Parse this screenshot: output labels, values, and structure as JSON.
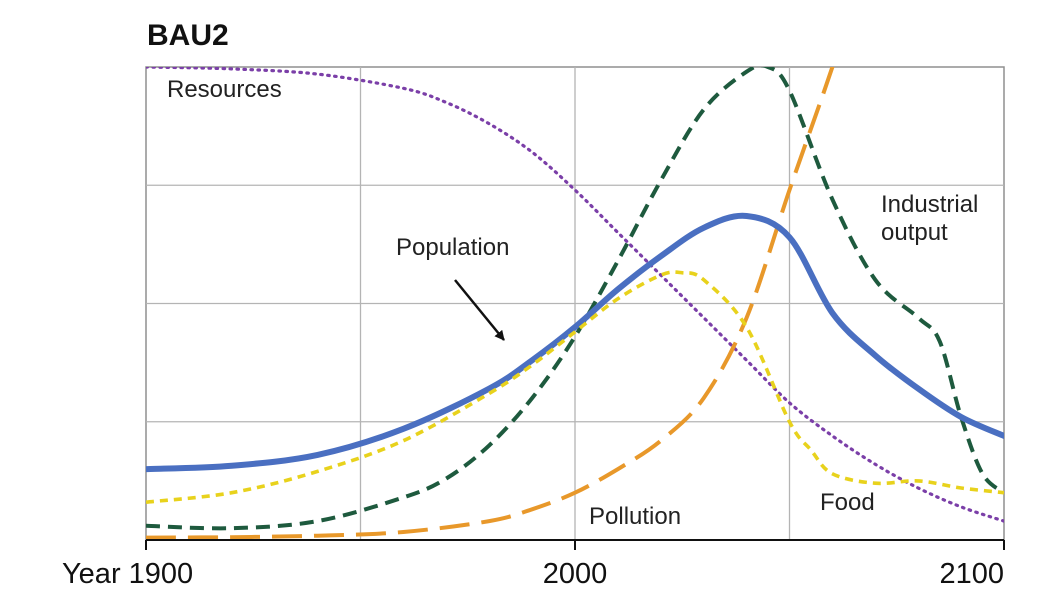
{
  "chart_data": {
    "type": "line",
    "title": "BAU2",
    "xlabel": "",
    "ylabel": "",
    "xlim": [
      1900,
      2100
    ],
    "ylim": [
      0,
      100
    ],
    "x_ticks": [
      "Year 1900",
      "2000",
      "2100"
    ],
    "grid": true,
    "legend": "none (series labelled directly on the plot)",
    "series": [
      {
        "name": "Resources",
        "color": "#7b3fa8",
        "style": "dotted",
        "x": [
          1900,
          1920,
          1940,
          1960,
          1970,
          1980,
          1990,
          2000,
          2010,
          2020,
          2030,
          2040,
          2050,
          2060,
          2070,
          2080,
          2090,
          2100
        ],
        "y": [
          100,
          99.6,
          98.5,
          95.5,
          92.5,
          88,
          82,
          74,
          65,
          56,
          47,
          38,
          29,
          22,
          16,
          11,
          7,
          4
        ]
      },
      {
        "name": "Industrial output",
        "color": "#1e5a3e",
        "style": "dashed",
        "x": [
          1900,
          1920,
          1940,
          1960,
          1970,
          1980,
          1990,
          2000,
          2010,
          2020,
          2030,
          2040,
          2045,
          2050,
          2060,
          2070,
          2080,
          2085,
          2090,
          2095,
          2100
        ],
        "y": [
          3,
          2.5,
          4,
          9,
          13,
          20,
          30,
          43,
          59,
          76,
          91,
          99,
          100,
          95,
          72,
          55,
          47,
          42,
          26,
          14,
          10
        ]
      },
      {
        "name": "Pollution",
        "color": "#e8982a",
        "style": "long-dashed",
        "x": [
          1900,
          1920,
          1940,
          1960,
          1980,
          1990,
          2000,
          2010,
          2020,
          2030,
          2040,
          2050,
          2060,
          2065
        ],
        "y": [
          0.5,
          0.6,
          0.9,
          1.7,
          4,
          6.5,
          10,
          15,
          21,
          30,
          47,
          74,
          100,
          115
        ]
      },
      {
        "name": "Population",
        "color": "#4a6fc1",
        "style": "solid",
        "x": [
          1900,
          1920,
          1940,
          1960,
          1980,
          1990,
          2000,
          2010,
          2020,
          2030,
          2040,
          2050,
          2060,
          2070,
          2080,
          2090,
          2100
        ],
        "y": [
          15,
          15.7,
          18,
          23.5,
          32,
          38,
          45,
          53,
          60,
          66,
          68.5,
          64,
          48,
          39,
          32,
          26,
          22
        ]
      },
      {
        "name": "Food",
        "color": "#e8d21c",
        "style": "dashed",
        "x": [
          1900,
          1920,
          1940,
          1960,
          1980,
          1990,
          2000,
          2010,
          2020,
          2025,
          2030,
          2040,
          2050,
          2055,
          2060,
          2070,
          2080,
          2090,
          2100
        ],
        "y": [
          8,
          10,
          14.5,
          21,
          31,
          37,
          44,
          51,
          56,
          56.5,
          55,
          45,
          25,
          19,
          14,
          12,
          12.5,
          11,
          10
        ]
      }
    ],
    "annotations": [
      {
        "text": "Resources",
        "series": "Resources"
      },
      {
        "text": "Industrial",
        "series": "Industrial output"
      },
      {
        "text": "output",
        "series": "Industrial output"
      },
      {
        "text": "Population",
        "series": "Population",
        "arrow": true
      },
      {
        "text": "Pollution",
        "series": "Pollution"
      },
      {
        "text": "Food",
        "series": "Food"
      }
    ]
  }
}
